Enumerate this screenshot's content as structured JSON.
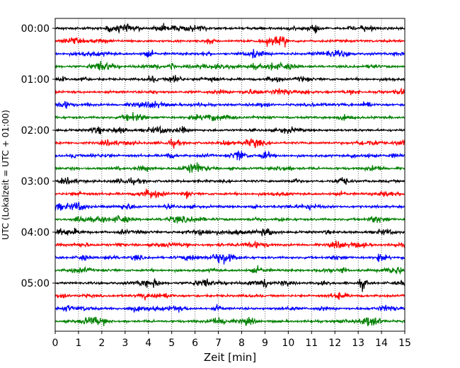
{
  "chart_data": {
    "type": "line",
    "title": "",
    "xlabel": "Zeit  [min]",
    "ylabel": "UTC (Lokalzeit = UTC + 01:00)",
    "xlim": [
      0,
      15
    ],
    "x_ticks": [
      "0",
      "1",
      "2",
      "3",
      "4",
      "5",
      "6",
      "7",
      "8",
      "9",
      "10",
      "11",
      "12",
      "13",
      "14",
      "15"
    ],
    "y_tick_labels": [
      "00:00",
      "01:00",
      "02:00",
      "03:00",
      "04:00",
      "05:00"
    ],
    "grid": "vertical dotted lines at each minute",
    "legend": "none",
    "row_interval_minutes": 15,
    "row_start_times": [
      "00:00",
      "00:15",
      "00:30",
      "00:45",
      "01:00",
      "01:15",
      "01:30",
      "01:45",
      "02:00",
      "02:15",
      "02:30",
      "02:45",
      "03:00",
      "03:15",
      "03:30",
      "03:45",
      "04:00",
      "04:15",
      "04:30",
      "04:45",
      "05:00",
      "05:15",
      "05:30",
      "05:45"
    ],
    "trace_colors": [
      "#000000",
      "#ff0000",
      "#0000ff",
      "#008000"
    ],
    "notable_events": [
      {
        "row": "05:00",
        "minute": 13.2,
        "note": "largest transient"
      },
      {
        "row": "05:00",
        "minute": 9.0,
        "note": "transient"
      },
      {
        "row": "00:15",
        "minute": 9.8,
        "note": "burst"
      },
      {
        "row": "00:45",
        "minute": 5.0,
        "note": "burst"
      },
      {
        "row": "04:30",
        "minute": 13.9,
        "note": "burst"
      },
      {
        "row": "01:00",
        "minute": 0.3,
        "note": "spike"
      },
      {
        "row": "00:00",
        "minute": 2.3,
        "note": "spike"
      }
    ]
  }
}
